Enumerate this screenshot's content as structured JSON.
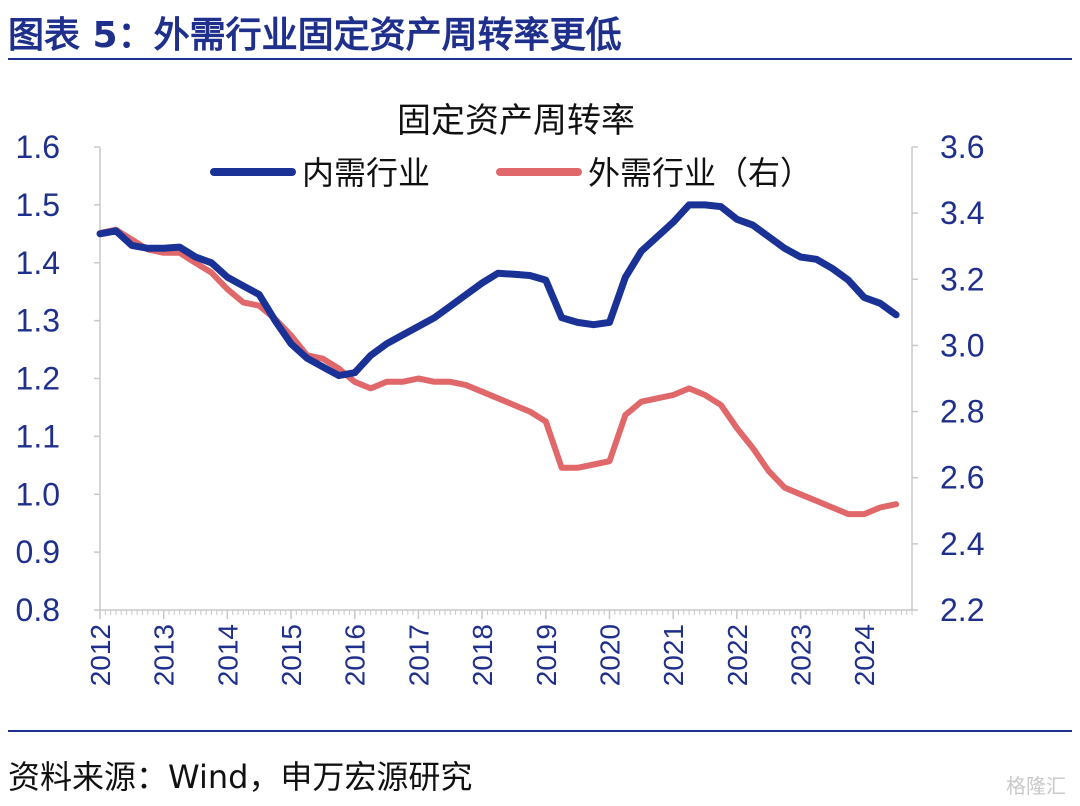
{
  "header": {
    "title": "图表 5：外需行业固定资产周转率更低"
  },
  "footer": {
    "source": "资料来源：Wind，申万宏源研究",
    "watermark": "格隆汇"
  },
  "colors": {
    "title_blue": "#1f2f8c",
    "series_domestic": "#1a3196",
    "series_foreign": "#e0676a",
    "axis": "#c8c8c8"
  },
  "chart_data": {
    "type": "line",
    "title": "固定资产周转率",
    "legend_position": "top-center",
    "grid": false,
    "xlabel": "",
    "ylabel": "",
    "xlim": [
      2012.0,
      2024.75
    ],
    "x_ticks": [
      "2012",
      "2013",
      "2014",
      "2015",
      "2016",
      "2017",
      "2018",
      "2019",
      "2020",
      "2021",
      "2022",
      "2023",
      "2024"
    ],
    "y_left": {
      "lim": [
        0.8,
        1.6
      ],
      "ticks": [
        "0.8",
        "0.9",
        "1.0",
        "1.1",
        "1.2",
        "1.3",
        "1.4",
        "1.5",
        "1.6"
      ]
    },
    "y_right": {
      "lim": [
        2.2,
        3.6
      ],
      "ticks": [
        "2.2",
        "2.4",
        "2.6",
        "2.8",
        "3.0",
        "3.2",
        "3.4",
        "3.6"
      ]
    },
    "series": [
      {
        "name": "内需行业",
        "axis": "left",
        "color": "#1a3196",
        "points": [
          [
            2012.0,
            1.45
          ],
          [
            2012.25,
            1.455
          ],
          [
            2012.5,
            1.43
          ],
          [
            2012.75,
            1.425
          ],
          [
            2013.0,
            1.425
          ],
          [
            2013.25,
            1.427
          ],
          [
            2013.5,
            1.41
          ],
          [
            2013.75,
            1.4
          ],
          [
            2014.0,
            1.375
          ],
          [
            2014.25,
            1.36
          ],
          [
            2014.5,
            1.345
          ],
          [
            2014.75,
            1.3
          ],
          [
            2015.0,
            1.26
          ],
          [
            2015.25,
            1.235
          ],
          [
            2015.5,
            1.22
          ],
          [
            2015.75,
            1.205
          ],
          [
            2016.0,
            1.21
          ],
          [
            2016.25,
            1.24
          ],
          [
            2016.5,
            1.26
          ],
          [
            2016.75,
            1.275
          ],
          [
            2017.0,
            1.29
          ],
          [
            2017.25,
            1.305
          ],
          [
            2017.5,
            1.325
          ],
          [
            2017.75,
            1.345
          ],
          [
            2018.0,
            1.365
          ],
          [
            2018.25,
            1.382
          ],
          [
            2018.5,
            1.38
          ],
          [
            2018.75,
            1.378
          ],
          [
            2019.0,
            1.37
          ],
          [
            2019.25,
            1.305
          ],
          [
            2019.5,
            1.297
          ],
          [
            2019.75,
            1.293
          ],
          [
            2020.0,
            1.297
          ],
          [
            2020.25,
            1.375
          ],
          [
            2020.5,
            1.42
          ],
          [
            2020.75,
            1.445
          ],
          [
            2021.0,
            1.47
          ],
          [
            2021.25,
            1.5
          ],
          [
            2021.5,
            1.5
          ],
          [
            2021.75,
            1.497
          ],
          [
            2022.0,
            1.475
          ],
          [
            2022.25,
            1.465
          ],
          [
            2022.5,
            1.445
          ],
          [
            2022.75,
            1.425
          ],
          [
            2023.0,
            1.41
          ],
          [
            2023.25,
            1.406
          ],
          [
            2023.5,
            1.39
          ],
          [
            2023.75,
            1.37
          ],
          [
            2024.0,
            1.34
          ],
          [
            2024.25,
            1.33
          ],
          [
            2024.5,
            1.31
          ]
        ]
      },
      {
        "name": "外需行业（右）",
        "axis": "right",
        "color": "#e0676a",
        "points": [
          [
            2012.0,
            3.34
          ],
          [
            2012.25,
            3.35
          ],
          [
            2012.5,
            3.32
          ],
          [
            2012.75,
            3.29
          ],
          [
            2013.0,
            3.28
          ],
          [
            2013.25,
            3.28
          ],
          [
            2013.5,
            3.25
          ],
          [
            2013.75,
            3.22
          ],
          [
            2014.0,
            3.17
          ],
          [
            2014.25,
            3.13
          ],
          [
            2014.5,
            3.12
          ],
          [
            2014.75,
            3.08
          ],
          [
            2015.0,
            3.03
          ],
          [
            2015.25,
            2.97
          ],
          [
            2015.5,
            2.96
          ],
          [
            2015.75,
            2.93
          ],
          [
            2016.0,
            2.89
          ],
          [
            2016.25,
            2.87
          ],
          [
            2016.5,
            2.89
          ],
          [
            2016.75,
            2.89
          ],
          [
            2017.0,
            2.9
          ],
          [
            2017.25,
            2.89
          ],
          [
            2017.5,
            2.89
          ],
          [
            2017.75,
            2.88
          ],
          [
            2018.0,
            2.86
          ],
          [
            2018.25,
            2.84
          ],
          [
            2018.5,
            2.82
          ],
          [
            2018.75,
            2.8
          ],
          [
            2019.0,
            2.77
          ],
          [
            2019.25,
            2.63
          ],
          [
            2019.5,
            2.63
          ],
          [
            2019.75,
            2.64
          ],
          [
            2020.0,
            2.65
          ],
          [
            2020.25,
            2.79
          ],
          [
            2020.5,
            2.83
          ],
          [
            2020.75,
            2.84
          ],
          [
            2021.0,
            2.85
          ],
          [
            2021.25,
            2.87
          ],
          [
            2021.5,
            2.85
          ],
          [
            2021.75,
            2.82
          ],
          [
            2022.0,
            2.75
          ],
          [
            2022.25,
            2.69
          ],
          [
            2022.5,
            2.62
          ],
          [
            2022.75,
            2.57
          ],
          [
            2023.0,
            2.55
          ],
          [
            2023.25,
            2.53
          ],
          [
            2023.5,
            2.51
          ],
          [
            2023.75,
            2.49
          ],
          [
            2024.0,
            2.49
          ],
          [
            2024.25,
            2.51
          ],
          [
            2024.5,
            2.52
          ]
        ]
      }
    ]
  }
}
